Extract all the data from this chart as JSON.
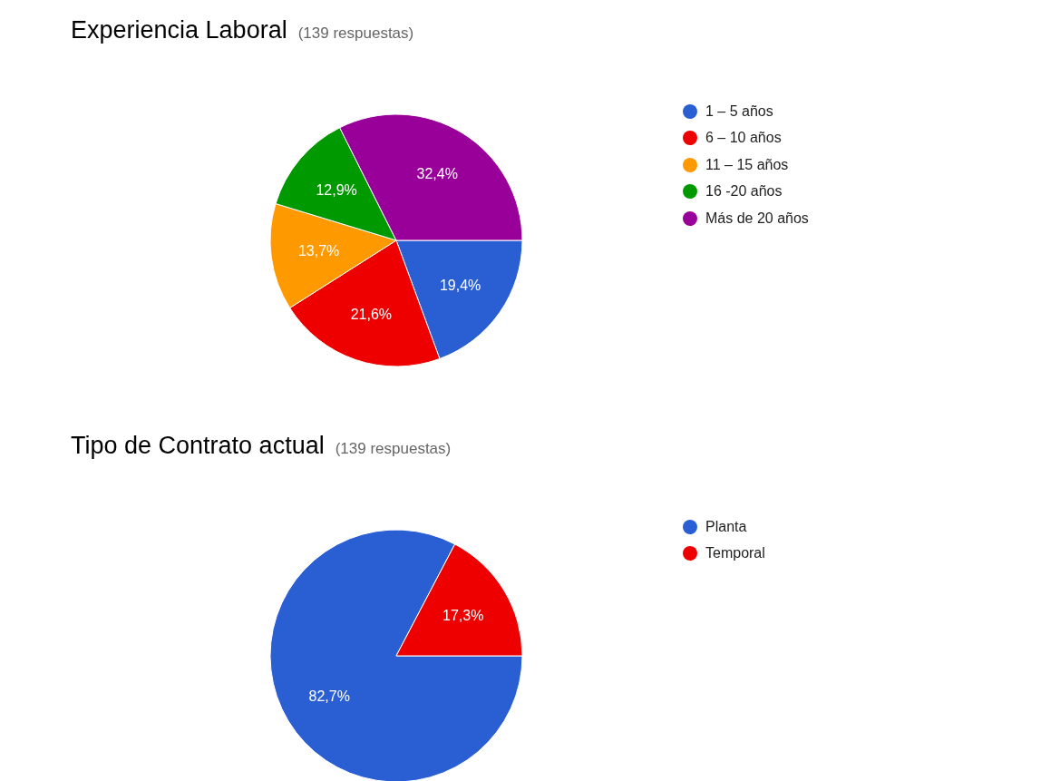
{
  "chart_data": [
    {
      "type": "pie",
      "title": "Experiencia Laboral",
      "subtitle": "(139 respuestas)",
      "categories": [
        "1 – 5 años",
        "6 – 10 años",
        "11 – 15 años",
        "16 -20 años",
        "Más de 20 años"
      ],
      "values": [
        19.4,
        21.6,
        13.7,
        12.9,
        32.4
      ],
      "colors": [
        "#2a5fd3",
        "#ee0000",
        "#ff9900",
        "#009900",
        "#990099"
      ],
      "value_labels": [
        "19,4%",
        "21,6%",
        "13,7%",
        "12,9%",
        "32,4%"
      ],
      "legend": "right"
    },
    {
      "type": "pie",
      "title": "Tipo de Contrato actual",
      "subtitle": "(139 respuestas)",
      "categories": [
        "Planta",
        "Temporal"
      ],
      "values": [
        82.7,
        17.3
      ],
      "colors": [
        "#2a5fd3",
        "#ee0000"
      ],
      "value_labels": [
        "82,7%",
        "17,3%"
      ],
      "legend": "right"
    }
  ]
}
